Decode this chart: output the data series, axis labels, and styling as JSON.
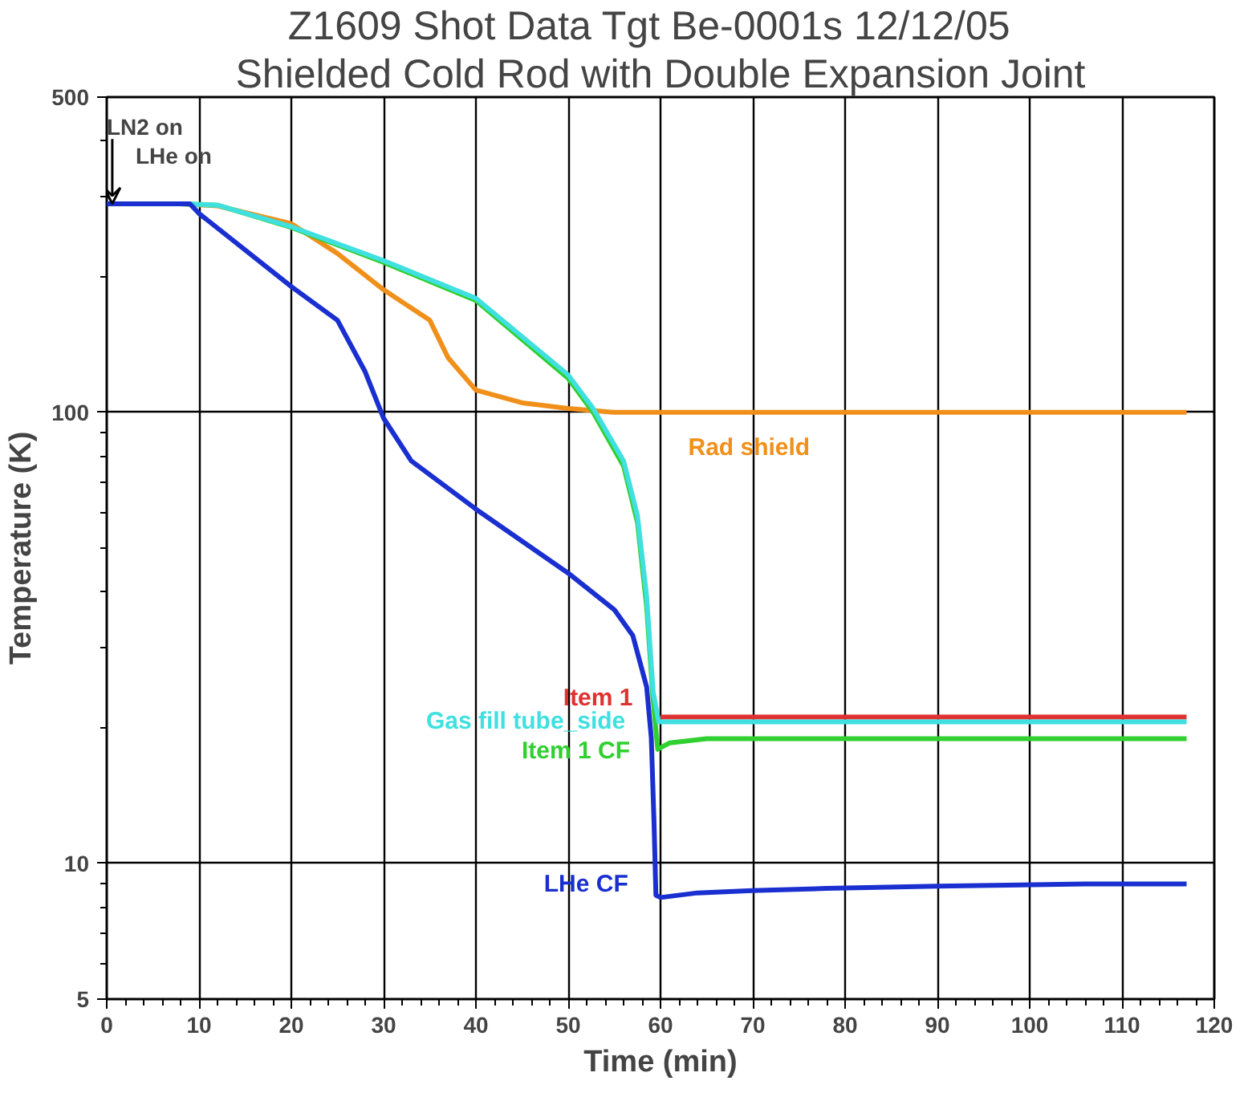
{
  "chart_data": {
    "type": "line",
    "title": "Z1609 Shot Data  Tgt Be-0001s  12/12/05",
    "subtitle": "Shielded Cold Rod with Double Expansion Joint",
    "xlabel": "Time (min)",
    "ylabel": "Temperature (K)",
    "log": "y",
    "grid": true,
    "legend": false,
    "xlim": [
      0,
      120
    ],
    "ylim": [
      5,
      500
    ],
    "xticks": [
      0,
      10,
      20,
      30,
      40,
      50,
      60,
      70,
      80,
      90,
      100,
      110,
      120
    ],
    "yticks": [
      5,
      10,
      100,
      500
    ],
    "annotations": [
      {
        "text": "LN2 on",
        "x": 0,
        "y": 290
      },
      {
        "text": "LHe on",
        "x": 0,
        "y": 290
      }
    ],
    "series": [
      {
        "name": "Rad shield",
        "color": "#f0901a",
        "x": [
          0,
          8,
          12,
          20,
          25,
          30,
          35,
          37,
          40,
          45,
          50,
          55,
          60,
          80,
          100,
          117
        ],
        "values": [
          290,
          290,
          287,
          262,
          225,
          187,
          160,
          132,
          112,
          105,
          102,
          100,
          100,
          100,
          100,
          100
        ]
      },
      {
        "name": "Item 1",
        "color": "#e03030",
        "x": [
          60,
          80,
          100,
          117
        ],
        "values": [
          21.1,
          21.1,
          21.1,
          21.1
        ]
      },
      {
        "name": "Item 1 CF",
        "color": "#30d030",
        "x": [
          0,
          8,
          12,
          20,
          30,
          40,
          50,
          52.7,
          56,
          57.5,
          58.5,
          59.2,
          59.7,
          61,
          65,
          80,
          100,
          117
        ],
        "values": [
          290,
          290,
          288,
          257,
          215,
          177,
          119,
          100,
          76,
          57,
          37,
          23,
          17.9,
          18.5,
          18.9,
          18.9,
          18.9,
          18.9
        ]
      },
      {
        "name": "Gas fill tube_side",
        "color": "#40e0e0",
        "x": [
          0,
          8,
          12,
          20,
          30,
          40,
          50,
          52.7,
          56,
          57.5,
          58.5,
          59.2,
          59.8,
          61,
          80,
          100,
          117
        ],
        "values": [
          290,
          290,
          288,
          258,
          217,
          179,
          121,
          102,
          78,
          59,
          39,
          24,
          20.6,
          20.6,
          20.6,
          20.6,
          20.6
        ]
      },
      {
        "name": "LHe CF",
        "color": "#1a2fd0",
        "x": [
          0,
          9,
          10,
          20,
          25,
          28,
          30,
          33,
          40,
          50,
          55,
          57,
          58.5,
          59,
          59.3,
          59.5,
          60,
          64,
          70,
          78,
          90,
          106,
          117
        ],
        "values": [
          290,
          290,
          276,
          190,
          160,
          123,
          97,
          78,
          61,
          44,
          36.5,
          32,
          24.6,
          19,
          12.3,
          8.5,
          8.4,
          8.6,
          8.7,
          8.8,
          8.9,
          9.0,
          9.0
        ]
      }
    ]
  }
}
